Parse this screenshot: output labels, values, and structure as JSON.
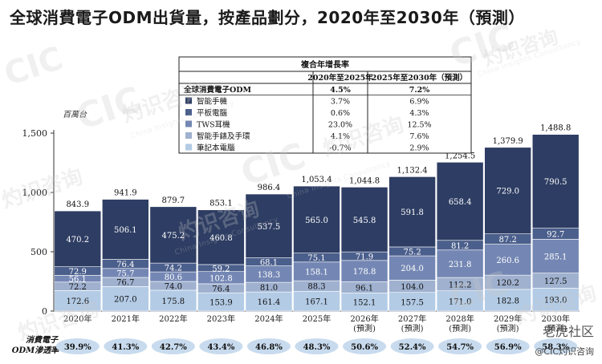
{
  "title": "全球消費電子ODM出貨量，按產品劃分，2020年至2030年（預測）",
  "watermarks": [
    "CIC",
    "灼识咨询",
    "China Insights Consultancy"
  ],
  "footer": {
    "brand": "老虎社区",
    "handle": "@CIC灼识咨询"
  },
  "colors": {
    "smartphone": "#2e3d63",
    "tablet": "#4b5f8c",
    "tws": "#7487b4",
    "wearable": "#9fb1cf",
    "laptop": "#b3cbe5",
    "penetration_ellipse": "#c8dbee"
  },
  "chart_data": {
    "type": "bar",
    "stacked": true,
    "unit_label": "百萬台",
    "categories": [
      "2020年",
      "2021年",
      "2022年",
      "2023年",
      "2024年",
      "2025年",
      "2026年\n(預測)",
      "2027年\n(預測)",
      "2028年\n(預測)",
      "2029年\n(預測)",
      "2030年\n(預測)"
    ],
    "ylim": [
      0,
      1500
    ],
    "yticks": [
      "0",
      "500",
      "1,000",
      "1,500"
    ],
    "totals": [
      "843.9",
      "941.9",
      "879.7",
      "853.1",
      "986.4",
      "1,053.4",
      "1,044.8",
      "1,132.4",
      "1,254.5",
      "1,379.9",
      "1,488.8"
    ],
    "total_values": [
      843.9,
      941.9,
      879.7,
      853.1,
      986.4,
      1053.4,
      1044.8,
      1132.4,
      1254.5,
      1379.9,
      1488.8
    ],
    "series": [
      {
        "name": "筆記本電腦",
        "key": "laptop",
        "values": [
          172.6,
          207.0,
          175.8,
          153.9,
          161.4,
          167.1,
          152.1,
          157.5,
          171.0,
          182.8,
          193.0
        ],
        "labels": [
          "172.6",
          "207.0",
          "175.8",
          "153.9",
          "161.4",
          "167.1",
          "152.1",
          "157.5",
          "171.0",
          "182.8",
          "193.0"
        ]
      },
      {
        "name": "智能手錶及手環",
        "key": "wearable",
        "values": [
          72.2,
          76.7,
          74.0,
          76.4,
          81.0,
          88.3,
          96.1,
          104.0,
          112.2,
          120.2,
          127.5
        ],
        "labels": [
          "72.2",
          "76.7",
          "74.0",
          "76.4",
          "81.0",
          "88.3",
          "96.1",
          "104.0",
          "112.2",
          "120.2",
          "127.5"
        ]
      },
      {
        "name": "TWS耳機",
        "key": "tws",
        "values": [
          56.1,
          75.7,
          80.6,
          102.8,
          138.3,
          158.1,
          178.8,
          204.0,
          231.8,
          260.6,
          285.1
        ],
        "labels": [
          "56.1",
          "75.7",
          "80.6",
          "102.8",
          "138.3",
          "158.1",
          "178.8",
          "204.0",
          "231.8",
          "260.6",
          "285.1"
        ]
      },
      {
        "name": "平板電腦",
        "key": "tablet",
        "values": [
          72.9,
          76.4,
          74.2,
          59.2,
          68.1,
          75.1,
          71.9,
          75.2,
          81.2,
          87.2,
          92.7
        ],
        "labels": [
          "72.9",
          "76.4",
          "74.2",
          "59.2",
          "68.1",
          "75.1",
          "71.9",
          "75.2",
          "81.2",
          "87.2",
          "92.7"
        ]
      },
      {
        "name": "智能手機",
        "key": "smartphone",
        "values": [
          470.2,
          506.1,
          475.2,
          460.8,
          537.5,
          565.0,
          545.8,
          591.8,
          658.4,
          729.0,
          790.5
        ],
        "labels": [
          "470.2",
          "506.1",
          "475.2",
          "460.8",
          "537.5",
          "565.0",
          "545.8",
          "591.8",
          "658.4",
          "729.0",
          "790.5"
        ]
      }
    ],
    "cagr_table": {
      "title": "複合年增長率",
      "headers": [
        "2020年至2025年",
        "2025年至2030年（預測）"
      ],
      "rows": [
        {
          "label": "全球消費電子ODM",
          "key": null,
          "v1": "4.5%",
          "v2": "7.2%"
        },
        {
          "label": "智能手機",
          "key": "smartphone",
          "v1": "3.7%",
          "v2": "6.9%"
        },
        {
          "label": "平板電腦",
          "key": "tablet",
          "v1": "0.6%",
          "v2": "4.3%"
        },
        {
          "label": "TWS耳機",
          "key": "tws",
          "v1": "23.0%",
          "v2": "12.5%"
        },
        {
          "label": "智能手錶及手環",
          "key": "wearable",
          "v1": "4.1%",
          "v2": "7.6%"
        },
        {
          "label": "筆記本電腦",
          "key": "laptop",
          "v1": "-0.7%",
          "v2": "2.9%"
        }
      ]
    },
    "penetration": {
      "label_line1": "消費電子",
      "label_line2": "ODM滲透率",
      "values": [
        "39.9%",
        "41.3%",
        "42.7%",
        "43.4%",
        "46.8%",
        "48.3%",
        "50.6%",
        "52.4%",
        "54.7%",
        "56.9%",
        "58.3%"
      ]
    }
  }
}
